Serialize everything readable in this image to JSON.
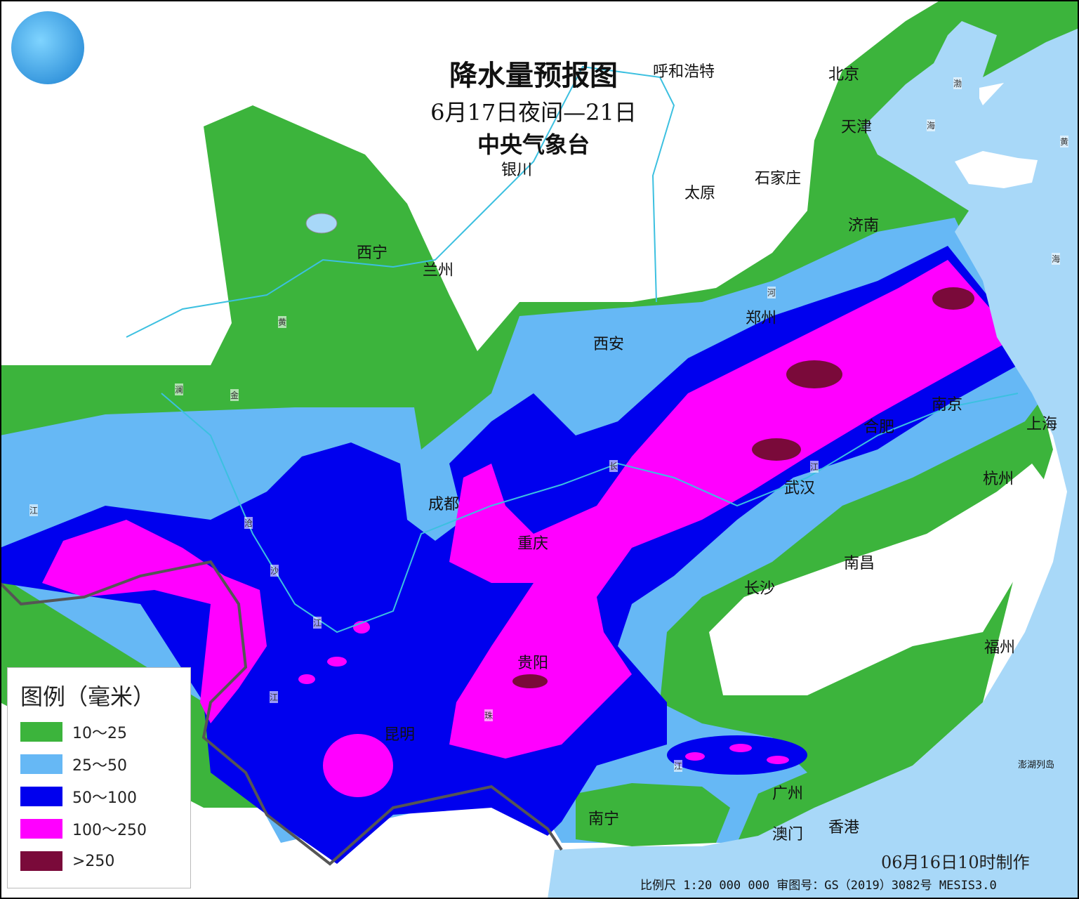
{
  "title": {
    "main": "降水量预报图",
    "period": "6月17日夜间—21日",
    "issuer": "中央气象台"
  },
  "colors": {
    "c10_25": "#3cb43c",
    "c25_50": "#66b8f5",
    "c50_100": "#0000ee",
    "c100_250": "#ff00ff",
    "c250": "#7a0a3a",
    "sea": "#a8d8f8",
    "land": "#ffffff"
  },
  "legend": {
    "title": "图例（毫米）",
    "items": [
      {
        "label": "10～25",
        "color": "#3cb43c"
      },
      {
        "label": "25～50",
        "color": "#66b8f5"
      },
      {
        "label": "50～100",
        "color": "#0000ee"
      },
      {
        "label": "100～250",
        "color": "#ff00ff"
      },
      {
        "label": ">250",
        "color": "#7a0a3a"
      }
    ]
  },
  "cities": [
    "呼和浩特",
    "北京",
    "天津",
    "银川",
    "太原",
    "石家庄",
    "济南",
    "西宁",
    "兰州",
    "郑州",
    "西安",
    "南京",
    "合肥",
    "上海",
    "成都",
    "武汉",
    "杭州",
    "重庆",
    "南昌",
    "长沙",
    "福州",
    "贵阳",
    "昆明",
    "广州",
    "南宁",
    "澳门",
    "香港",
    "澎湖列岛"
  ],
  "water_labels": [
    "渤",
    "海",
    "黄",
    "海",
    "河",
    "黄",
    "澜",
    "金",
    "江",
    "沧",
    "沙",
    "江",
    "江",
    "长",
    "江",
    "珠",
    "江"
  ],
  "footer": {
    "made": "06月16日10时制作",
    "scale": "比例尺 1:20 000 000  审图号：GS（2019）3082号 MESIS3.0"
  },
  "logo_icon": "cma-logo-icon"
}
